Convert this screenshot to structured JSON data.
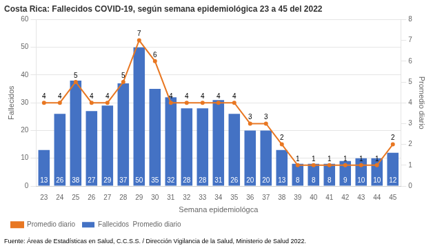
{
  "chart_data": {
    "type": "bar",
    "title": "Costa Rica: Fallecidos COVID-19, según semana epidemiológica 23 a 45 del 2022",
    "xlabel": "Semana epidemiológca",
    "ylabel": "Fallecidos",
    "y2label": "Promedio diario",
    "annotations": [
      "Fuente: Áreas de Estadísticas en Salud, C.C.S.S. / Dirección Vigilancia de la Salud, Ministerio de Salud 2022."
    ],
    "categories": [
      23,
      24,
      25,
      26,
      27,
      28,
      29,
      30,
      31,
      32,
      33,
      34,
      35,
      36,
      37,
      38,
      39,
      40,
      41,
      42,
      43,
      44,
      45
    ],
    "series": [
      {
        "name": "Fallecidos  Promedio diario",
        "type": "bar",
        "color": "#4472C4",
        "values": [
          13,
          26,
          38,
          27,
          29,
          37,
          50,
          35,
          32,
          28,
          28,
          31,
          26,
          20,
          20,
          13,
          8,
          8,
          8,
          9,
          10,
          10,
          12
        ]
      },
      {
        "name": "Promedio diario",
        "type": "line",
        "color": "#E87722",
        "axis": "y2",
        "values": [
          4,
          4,
          5,
          4,
          4,
          5,
          7,
          6,
          4,
          4,
          4,
          4,
          4,
          3,
          3,
          2,
          1,
          1,
          1,
          1,
          1,
          1,
          2
        ]
      }
    ],
    "ylim": [
      0,
      60
    ],
    "yticks": [
      0,
      10,
      20,
      30,
      40,
      50,
      60
    ],
    "y2lim": [
      0,
      8
    ],
    "y2ticks": [
      0,
      1,
      2,
      3,
      4,
      5,
      6,
      7,
      8
    ],
    "grid": true,
    "legend": "bottom",
    "data_labels": true
  }
}
